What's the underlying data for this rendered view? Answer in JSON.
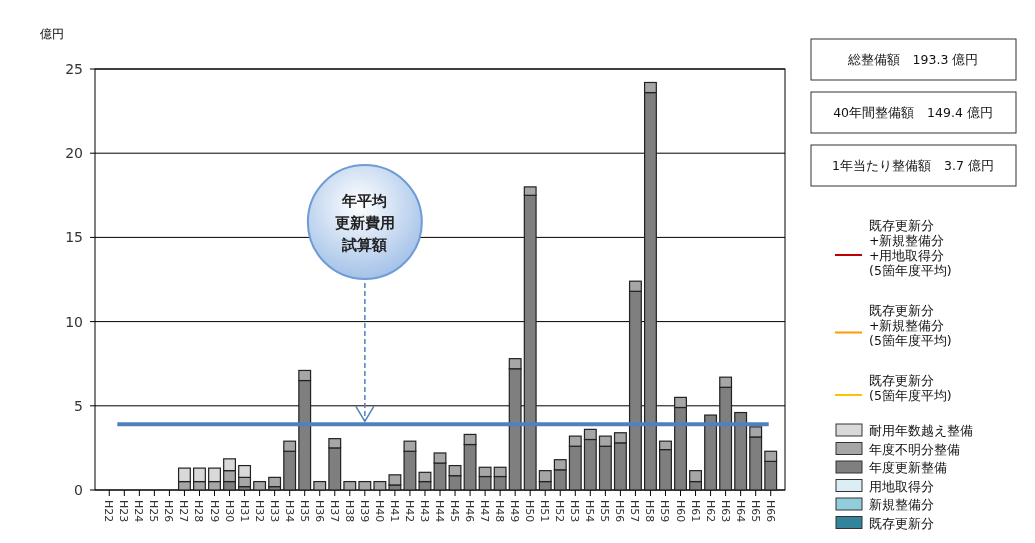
{
  "chart_data": {
    "type": "bar",
    "stacked": true,
    "ylabel": "億円",
    "categories": [
      "H22",
      "H23",
      "H24",
      "H25",
      "H26",
      "H27",
      "H28",
      "H29",
      "H30",
      "H31",
      "H32",
      "H33",
      "H34",
      "H35",
      "H36",
      "H37",
      "H38",
      "H39",
      "H40",
      "H41",
      "H42",
      "H43",
      "H44",
      "H45",
      "H46",
      "H47",
      "H48",
      "H49",
      "H50",
      "H51",
      "H52",
      "H53",
      "H54",
      "H55",
      "H56",
      "H57",
      "H58",
      "H59",
      "H60",
      "H61",
      "H62",
      "H63",
      "H64",
      "H65",
      "H66"
    ],
    "series": [
      {
        "name": "既存更新分\n+新規整備分\n+用地取得分\n(5箇年度平均)",
        "type": "line",
        "color": "#c00000",
        "values": [
          null,
          null,
          null,
          null,
          null,
          null,
          null,
          null,
          null,
          null,
          null,
          null,
          null,
          null,
          null,
          null,
          null,
          null,
          null,
          null,
          null,
          null,
          null,
          null,
          null,
          null,
          null,
          null,
          null,
          null,
          null,
          null,
          null,
          null,
          null,
          null,
          null,
          null,
          null,
          null,
          null,
          null,
          null,
          null,
          null
        ]
      },
      {
        "name": "既存更新分\n+新規整備分\n(5箇年度平均)",
        "type": "line",
        "color": "#ff9900",
        "values": [
          null,
          null,
          null,
          null,
          null,
          null,
          null,
          null,
          null,
          null,
          null,
          null,
          null,
          null,
          null,
          null,
          null,
          null,
          null,
          null,
          null,
          null,
          null,
          null,
          null,
          null,
          null,
          null,
          null,
          null,
          null,
          null,
          null,
          null,
          null,
          null,
          null,
          null,
          null,
          null,
          null,
          null,
          null,
          null,
          null
        ]
      },
      {
        "name": "既存更新分\n(5箇年度平均)",
        "type": "line",
        "color": "#ffc000",
        "values": [
          null,
          null,
          null,
          null,
          null,
          null,
          null,
          null,
          null,
          null,
          null,
          null,
          null,
          null,
          null,
          null,
          null,
          null,
          null,
          null,
          null,
          null,
          null,
          null,
          null,
          null,
          null,
          null,
          null,
          null,
          null,
          null,
          null,
          null,
          null,
          null,
          null,
          null,
          null,
          null,
          null,
          null,
          null,
          null,
          null
        ]
      },
      {
        "name": "既存更新分",
        "color": "#31849b",
        "values": [
          null,
          null,
          null,
          null,
          null,
          null,
          null,
          null,
          null,
          null,
          null,
          null,
          null,
          null,
          null,
          null,
          null,
          null,
          null,
          null,
          null,
          null,
          null,
          null,
          null,
          null,
          null,
          null,
          null,
          null,
          null,
          null,
          null,
          null,
          null,
          null,
          null,
          null,
          null,
          null,
          null,
          null,
          null,
          null,
          null
        ]
      },
      {
        "name": "新規整備分",
        "color": "#92cddc",
        "values": [
          null,
          null,
          null,
          null,
          null,
          null,
          null,
          null,
          null,
          null,
          null,
          null,
          null,
          null,
          null,
          null,
          null,
          null,
          null,
          null,
          null,
          null,
          null,
          null,
          null,
          null,
          null,
          null,
          null,
          null,
          null,
          null,
          null,
          null,
          null,
          null,
          null,
          null,
          null,
          null,
          null,
          null,
          null,
          null,
          null
        ]
      },
      {
        "name": "用地取得分",
        "color": "#daeef3",
        "values": [
          null,
          null,
          null,
          null,
          null,
          null,
          null,
          null,
          null,
          null,
          null,
          null,
          null,
          null,
          null,
          null,
          null,
          null,
          null,
          null,
          null,
          null,
          null,
          null,
          null,
          null,
          null,
          null,
          null,
          null,
          null,
          null,
          null,
          null,
          null,
          null,
          null,
          null,
          null,
          null,
          null,
          null,
          null,
          null,
          null
        ]
      },
      {
        "name": "年度更新整備",
        "color": "#7f7f7f",
        "values": [
          null,
          null,
          null,
          null,
          null,
          null,
          null,
          null,
          0.5,
          0.2,
          null,
          0.2,
          2.3,
          6.5,
          null,
          2.5,
          null,
          null,
          null,
          0.3,
          2.3,
          0.5,
          1.6,
          0.85,
          2.7,
          0.8,
          0.8,
          7.2,
          17.5,
          0.5,
          1.2,
          2.6,
          3.0,
          2.6,
          2.8,
          11.8,
          23.6,
          2.4,
          4.9,
          0.5,
          4.45,
          6.1,
          4.6,
          3.15,
          1.7
        ]
      },
      {
        "name": "年度不明分整備",
        "color": "#a6a6a6",
        "values": [
          null,
          null,
          null,
          null,
          null,
          0.5,
          0.5,
          0.5,
          0.65,
          0.55,
          0.5,
          0.55,
          0.6,
          0.6,
          0.5,
          0.55,
          0.5,
          0.5,
          0.5,
          0.6,
          0.6,
          0.55,
          0.6,
          0.6,
          0.6,
          0.55,
          0.55,
          0.6,
          0.5,
          0.65,
          0.6,
          0.6,
          0.6,
          0.6,
          0.6,
          0.6,
          0.6,
          0.5,
          0.6,
          0.65,
          null,
          0.6,
          null,
          0.6,
          0.6
        ]
      },
      {
        "name": "耐用年数越え整備",
        "color": "#d9d9d9",
        "values": [
          null,
          null,
          null,
          null,
          null,
          0.8,
          0.8,
          0.8,
          0.7,
          0.7,
          null,
          null,
          null,
          null,
          null,
          null,
          null,
          null,
          null,
          null,
          null,
          null,
          null,
          null,
          null,
          null,
          null,
          null,
          null,
          null,
          null,
          null,
          null,
          null,
          null,
          null,
          null,
          null,
          null,
          null,
          null,
          null,
          null,
          null,
          null
        ]
      }
    ],
    "ylim": [
      0,
      25
    ],
    "yticks": [
      0,
      5,
      10,
      15,
      20,
      25
    ],
    "grid": "y",
    "legend": "right",
    "ref_lines": [
      {
        "axis": "y",
        "value": 3.9,
        "color": "#4f81bd"
      }
    ],
    "annotations": [
      "年平均更新費用試算額",
      "総整備額　193.3 億円",
      "40年間整備額　149.4 億円",
      "1年当たり整備額　3.7 億円"
    ]
  }
}
